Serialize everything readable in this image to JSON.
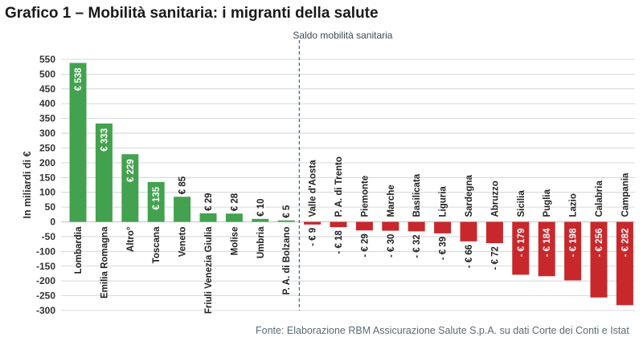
{
  "title": "Grafico 1 – Mobilità sanitaria: i migranti della salute",
  "source": "Fonte: Elaborazione RBM Assicurazione Salute S.p.A. su dati Corte dei Conti e Istat",
  "colors": {
    "positive": "#43a24f",
    "positive_light": "#4fb85c",
    "negative": "#c8282c",
    "grid": "#c9ced2",
    "divider": "#4a6b82",
    "axis_text": "#333333"
  },
  "chart_data": {
    "type": "bar",
    "title": "Grafico 1 – Mobilità sanitaria: i migranti della salute",
    "ylabel": "In miliardi di €",
    "annotation": "Saldo mobilità sanitaria",
    "ylim": [
      -300,
      550
    ],
    "yticks": [
      550,
      500,
      450,
      400,
      350,
      300,
      250,
      200,
      150,
      100,
      50,
      0,
      -50,
      -100,
      -150,
      -200,
      -250,
      -300
    ],
    "grid": true,
    "categories": [
      "Lombardia",
      "Emilia Romagna",
      "Altro°",
      "Toscana",
      "Veneto",
      "Friuli Venezia Giulia",
      "Molise",
      "Umbria",
      "P. A. di Bolzano",
      "Valle d'Aosta",
      "P. A. di Trento",
      "Piemonte",
      "Marche",
      "Basilicata",
      "Liguria",
      "Sardegna",
      "Abruzzo",
      "Sicilia",
      "Puglia",
      "Lazio",
      "Calabria",
      "Campania"
    ],
    "values": [
      538,
      333,
      229,
      135,
      85,
      29,
      28,
      10,
      5,
      -9,
      -18,
      -29,
      -30,
      -32,
      -39,
      -66,
      -72,
      -179,
      -184,
      -198,
      -256,
      -282
    ],
    "value_labels": [
      "€ 538",
      "€ 333",
      "€ 229",
      "€ 135",
      "€ 85",
      "€ 29",
      "€ 28",
      "€ 10",
      "€ 5",
      "- € 9",
      "- € 18",
      "- € 29",
      "- € 30",
      "- € 32",
      "- € 39",
      "- € 66",
      "- € 72",
      "- € 179",
      "- € 184",
      "- € 198",
      "- € 256",
      "- € 282"
    ]
  }
}
